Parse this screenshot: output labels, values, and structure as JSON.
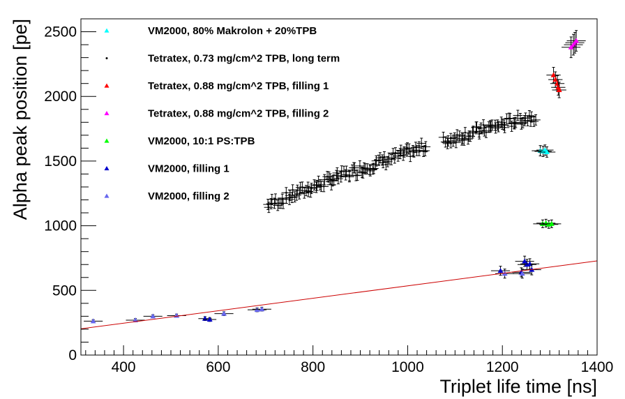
{
  "chart_data": {
    "type": "scatter",
    "title": "",
    "xlabel": "Triplet life time [ns]",
    "ylabel": "Alpha peak position [pe]",
    "xlim": [
      310,
      1400
    ],
    "ylim": [
      0,
      2600
    ],
    "xticks": [
      400,
      600,
      800,
      1000,
      1200,
      1400
    ],
    "yticks": [
      0,
      500,
      1000,
      1500,
      2000,
      2500
    ],
    "grid": false,
    "legend_position": "top-left",
    "series": [
      {
        "name": "VM2000, 80% Makrolon + 20%TPB",
        "color": "#00ffff",
        "marker": "triangle",
        "points": [
          [
            1280,
            1580,
            18,
            40
          ],
          [
            1286,
            1575,
            18,
            40
          ],
          [
            1290,
            1585,
            18,
            40
          ],
          [
            1294,
            1570,
            18,
            40
          ]
        ]
      },
      {
        "name": "Tetratex, 0.73 mg/cm^2 TPB, long term",
        "color": "#000000",
        "marker": "dot",
        "cloud": {
          "x_start": 705,
          "x_end": 1270,
          "count": 170,
          "y_at_start": 1160,
          "y_at_end": 1850,
          "curvature": 0.25,
          "gap": [
            1040,
            1075
          ],
          "x_err": 10,
          "y_err": 40,
          "scatter": 40
        }
      },
      {
        "name": "Tetratex, 0.88 mg/cm^2 TPB, filling 1",
        "color": "#ff0000",
        "marker": "triangle",
        "points": [
          [
            1308,
            2165,
            15,
            60
          ],
          [
            1312,
            2130,
            15,
            60
          ],
          [
            1316,
            2100,
            15,
            60
          ],
          [
            1318,
            2070,
            15,
            60
          ],
          [
            1320,
            2050,
            15,
            60
          ]
        ]
      },
      {
        "name": "Tetratex, 0.88 mg/cm^2 TPB, filling 2",
        "color": "#ff00ff",
        "marker": "triangle",
        "points": [
          [
            1345,
            2380,
            20,
            80
          ],
          [
            1350,
            2400,
            20,
            80
          ],
          [
            1353,
            2415,
            20,
            80
          ],
          [
            1356,
            2430,
            20,
            80
          ]
        ]
      },
      {
        "name": "VM2000, 10:1 PS:TPB",
        "color": "#00ff00",
        "marker": "triangle",
        "points": [
          [
            1285,
            1015,
            20,
            30
          ],
          [
            1292,
            1020,
            20,
            30
          ],
          [
            1298,
            1010,
            20,
            30
          ],
          [
            1304,
            1015,
            20,
            30
          ]
        ]
      },
      {
        "name": "VM2000, filling 1",
        "color": "#0000cc",
        "marker": "triangle",
        "points": [
          [
            572,
            282,
            14,
            15
          ],
          [
            582,
            275,
            14,
            15
          ],
          [
            1196,
            652,
            20,
            35
          ],
          [
            1240,
            640,
            20,
            35
          ],
          [
            1247,
            725,
            20,
            40
          ],
          [
            1252,
            700,
            20,
            40
          ],
          [
            1258,
            705,
            20,
            40
          ],
          [
            1262,
            660,
            20,
            40
          ]
        ]
      },
      {
        "name": "VM2000, filling 2",
        "color": "#6666ee",
        "marker": "triangle",
        "points": [
          [
            336,
            262,
            20,
            12
          ],
          [
            425,
            270,
            20,
            12
          ],
          [
            462,
            300,
            20,
            12
          ],
          [
            512,
            305,
            20,
            12
          ],
          [
            612,
            320,
            20,
            15
          ],
          [
            682,
            350,
            20,
            15
          ],
          [
            692,
            355,
            20,
            15
          ],
          [
            1205,
            630,
            20,
            35
          ],
          [
            1242,
            630,
            20,
            35
          ]
        ]
      }
    ],
    "fit_line": {
      "color": "#cc0000",
      "x": [
        310,
        1400
      ],
      "y": [
        203,
        728
      ]
    }
  }
}
